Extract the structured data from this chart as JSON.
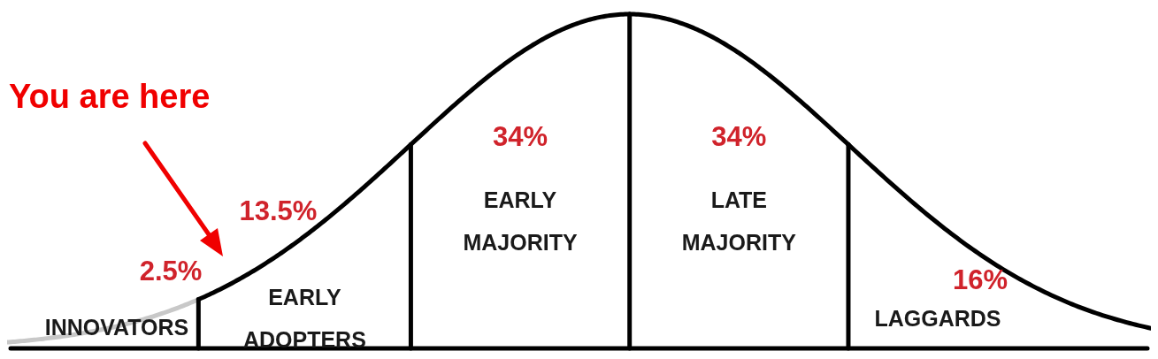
{
  "chart_data": {
    "type": "other",
    "categories": [
      "INNOVATORS",
      "EARLY ADOPTERS",
      "EARLY MAJORITY",
      "LATE MAJORITY",
      "LAGGARDS"
    ],
    "values": [
      2.5,
      13.5,
      34,
      34,
      16
    ],
    "value_labels": [
      "2.5%",
      "13.5%",
      "34%",
      "34%",
      "16%"
    ],
    "color": "#d0232b",
    "annotations": [
      "You are here"
    ]
  }
}
